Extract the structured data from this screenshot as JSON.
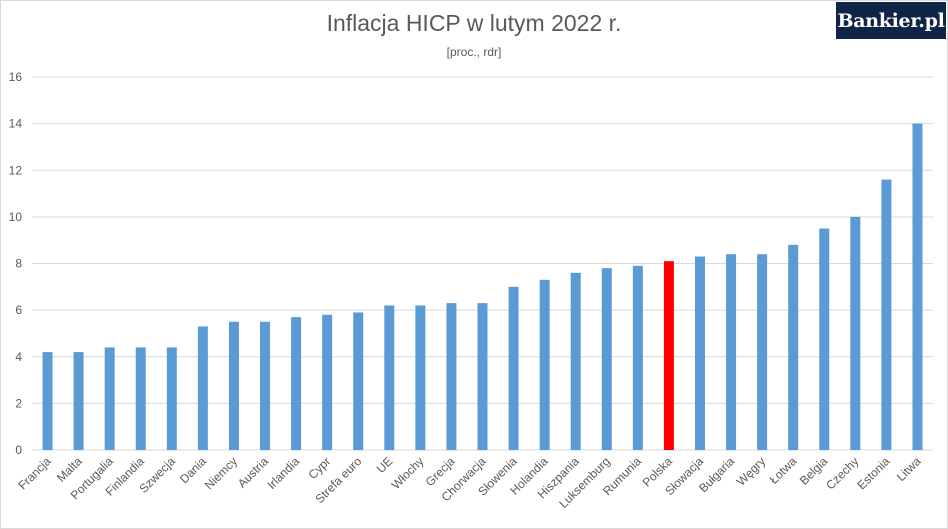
{
  "brand": {
    "logo_text": "Bankier.pl"
  },
  "chart_data": {
    "type": "bar",
    "title": "Inflacja HICP w lutym 2022 r.",
    "subtitle": "[proc., rdr]",
    "xlabel": "",
    "ylabel": "",
    "ylim": [
      0,
      16
    ],
    "yticks": [
      0,
      2,
      4,
      6,
      8,
      10,
      12,
      14,
      16
    ],
    "grid": true,
    "legend": "none",
    "colors": {
      "default": "#5b9bd5",
      "highlight": "#ff0000",
      "grid": "#d9d9d9",
      "text": "#595959"
    },
    "highlight_category": "Polska",
    "categories": [
      "Francja",
      "Malta",
      "Portugalia",
      "Finlandia",
      "Szwecja",
      "Dania",
      "Niemcy",
      "Austria",
      "Irlandia",
      "Cypr",
      "Strefa euro",
      "UE",
      "Włochy",
      "Grecja",
      "Chorwacja",
      "Słowenia",
      "Holandia",
      "Hiszpania",
      "Luksemburg",
      "Rumunia",
      "Polska",
      "Słowacja",
      "Bułgaria",
      "Węgry",
      "Łotwa",
      "Belgia",
      "Czechy",
      "Estonia",
      "Litwa"
    ],
    "values": [
      4.2,
      4.2,
      4.4,
      4.4,
      4.4,
      5.3,
      5.5,
      5.5,
      5.7,
      5.8,
      5.9,
      6.2,
      6.2,
      6.3,
      6.3,
      7.0,
      7.3,
      7.6,
      7.8,
      7.9,
      8.1,
      8.3,
      8.4,
      8.4,
      8.8,
      9.5,
      10.0,
      11.6,
      14.0
    ]
  }
}
